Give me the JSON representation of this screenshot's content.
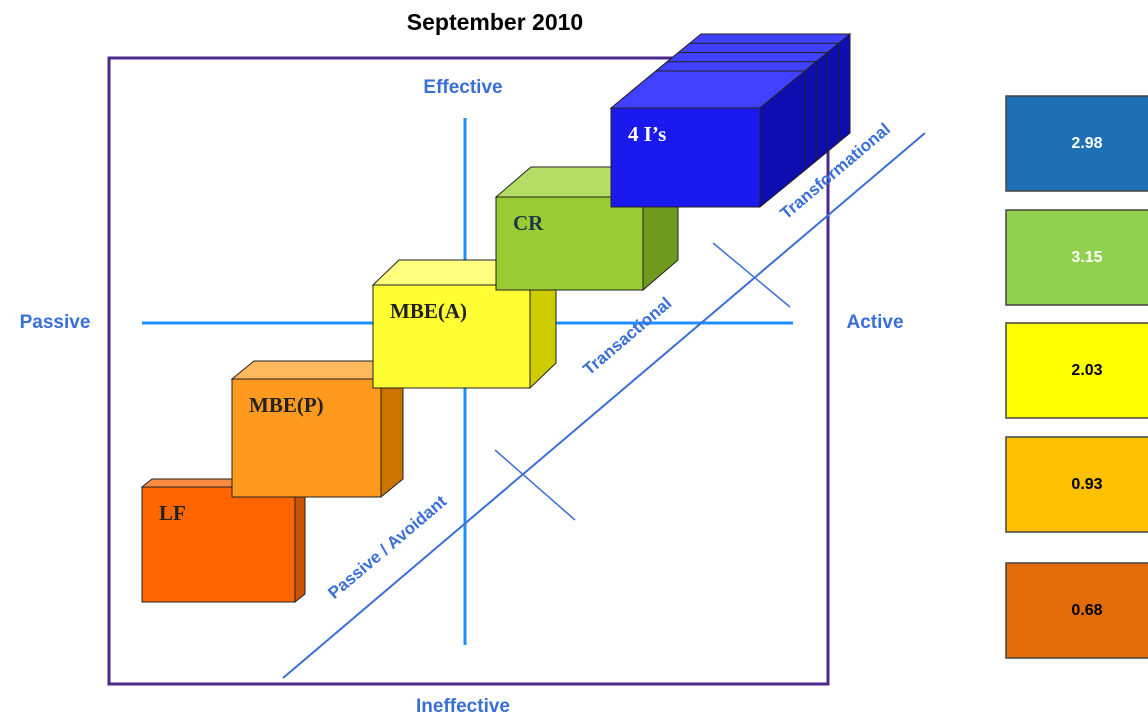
{
  "title": "September 2010",
  "axes": {
    "top": "Effective",
    "bottom": "Ineffective",
    "left": "Passive",
    "right": "Active"
  },
  "zones": [
    "Passive / Avoidant",
    "Transactional",
    "Transformational"
  ],
  "blocks": [
    {
      "label": "LF"
    },
    {
      "label": "MBE(P)"
    },
    {
      "label": "MBE(A)"
    },
    {
      "label": "CR"
    },
    {
      "label": "4 I’s"
    }
  ],
  "scores": [
    2.98,
    3.15,
    2.03,
    0.93,
    0.68
  ]
}
